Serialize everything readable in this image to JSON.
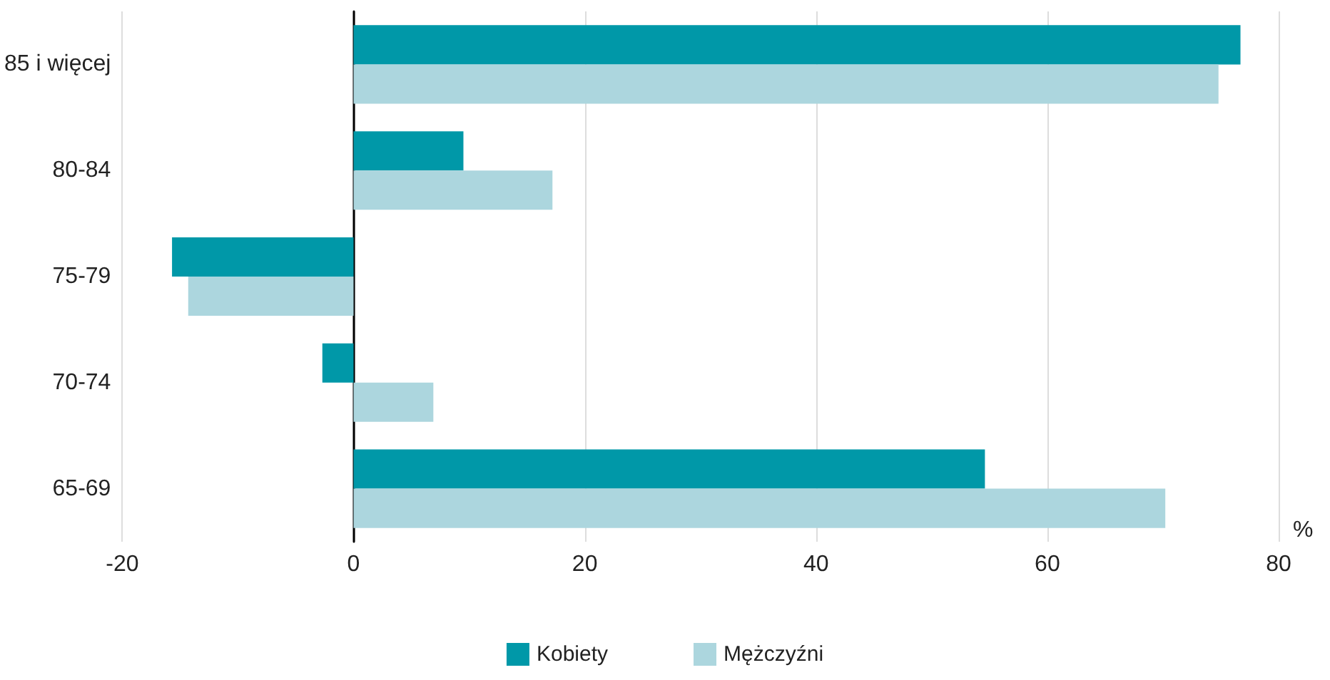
{
  "chart_data": {
    "type": "bar",
    "orientation": "horizontal",
    "xlabel": "%",
    "categories": [
      "85 i więcej",
      "80-84",
      "75-79",
      "70-74",
      "65-69"
    ],
    "series": [
      {
        "name": "Kobiety",
        "color": "#0098a8",
        "values": [
          76.7,
          9.5,
          -15.7,
          -2.7,
          54.6
        ]
      },
      {
        "name": "Mężczyźni",
        "color": "#acd6de",
        "values": [
          74.8,
          17.2,
          -14.3,
          6.9,
          70.2
        ]
      }
    ],
    "xlim": [
      -20,
      80
    ],
    "xticks": [
      -20,
      0,
      20,
      40,
      60,
      80
    ],
    "grid": "x",
    "legend": "bottom"
  }
}
